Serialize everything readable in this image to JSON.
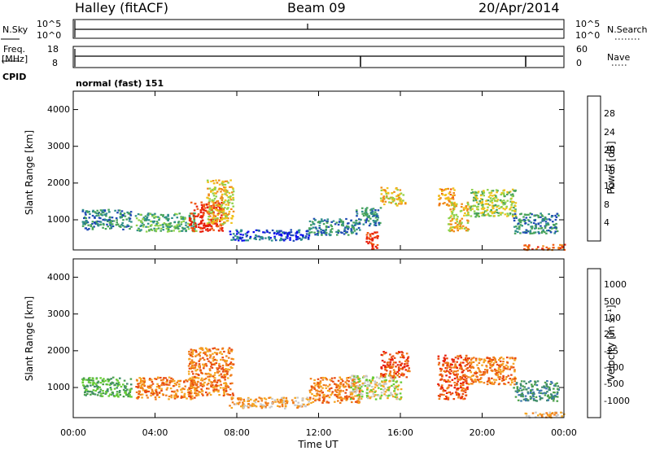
{
  "header": {
    "station": "Halley (fitACF)",
    "beam": "Beam 09",
    "date": "20/Apr/2014"
  },
  "sky_panel": {
    "left_label": "N.Sky",
    "right_label": "N.Search",
    "tick_top": "10^5",
    "tick_bottom": "10^0",
    "right_tick_top": "10^5",
    "right_tick_bottom": "10^0"
  },
  "freq_panel": {
    "left_label_top": "Freq.",
    "left_label_bottom": "[MHz]",
    "right_label": "Nave",
    "tick_top": "18",
    "tick_bottom": "8",
    "right_tick_top": "60",
    "right_tick_bottom": "0"
  },
  "cpid": {
    "label": "CPID",
    "mode": "normal (fast) 151"
  },
  "colors": {
    "power": [
      "#0a0aee",
      "#1e4ab4",
      "#2f8f8a",
      "#47a35a",
      "#8fd24a",
      "#f0c21a",
      "#f08a1a",
      "#f05a10",
      "#e81e0a"
    ],
    "velocity": [
      "#1a3cb4",
      "#3c78aa",
      "#3f8c6a",
      "#4aa04a",
      "#66cc33",
      "#c8c8c8",
      "#f5a623",
      "#f07d1a",
      "#e84a10",
      "#e81e0a"
    ]
  },
  "chart_data": [
    {
      "type": "heatmap",
      "name": "power",
      "ylabel": "Slant Range [km]",
      "xlabel": "",
      "x_ticks": [
        "00:00",
        "04:00",
        "08:00",
        "12:00",
        "16:00",
        "20:00",
        "00:00"
      ],
      "y_ticks": [
        "1000",
        "2000",
        "3000",
        "4000"
      ],
      "ylim": [
        180,
        4500
      ],
      "colorbar": {
        "label": "Power [dB]",
        "ticks": [
          "4",
          "8",
          "12",
          "16",
          "20",
          "24",
          "28"
        ]
      },
      "features": [
        {
          "t": [
            0.4,
            2.8
          ],
          "r": [
            750,
            1300
          ],
          "level": 2
        },
        {
          "t": [
            3.0,
            6.0
          ],
          "r": [
            700,
            1200
          ],
          "level": 3
        },
        {
          "t": [
            5.6,
            7.3
          ],
          "r": [
            700,
            1500
          ],
          "level": 8
        },
        {
          "t": [
            6.5,
            7.8
          ],
          "r": [
            900,
            2100
          ],
          "level": 5
        },
        {
          "t": [
            7.6,
            11.5
          ],
          "r": [
            450,
            750
          ],
          "level": 1
        },
        {
          "t": [
            11.5,
            14.0
          ],
          "r": [
            600,
            1050
          ],
          "level": 2
        },
        {
          "t": [
            13.8,
            15.0
          ],
          "r": [
            850,
            1350
          ],
          "level": 2
        },
        {
          "t": [
            14.3,
            14.9
          ],
          "r": [
            200,
            700
          ],
          "level": 8
        },
        {
          "t": [
            15.0,
            16.2
          ],
          "r": [
            1400,
            1900
          ],
          "level": 5
        },
        {
          "t": [
            17.8,
            18.6
          ],
          "r": [
            1400,
            1900
          ],
          "level": 6
        },
        {
          "t": [
            18.3,
            19.3
          ],
          "r": [
            700,
            1500
          ],
          "level": 5
        },
        {
          "t": [
            19.3,
            21.6
          ],
          "r": [
            1100,
            1850
          ],
          "level": 4
        },
        {
          "t": [
            21.5,
            23.7
          ],
          "r": [
            650,
            1200
          ],
          "level": 2
        },
        {
          "t": [
            22.0,
            24.0
          ],
          "r": [
            200,
            350
          ],
          "level": 7
        }
      ]
    },
    {
      "type": "heatmap",
      "name": "velocity",
      "ylabel": "Slant Range [km]",
      "xlabel": "Time UT",
      "x_ticks": [
        "00:00",
        "04:00",
        "08:00",
        "12:00",
        "16:00",
        "20:00",
        "00:00"
      ],
      "y_ticks": [
        "1000",
        "2000",
        "3000",
        "4000"
      ],
      "ylim": [
        180,
        4500
      ],
      "colorbar": {
        "label": "Velocity [m s⁻¹]",
        "ticks": [
          "1000",
          "500",
          "100",
          "25",
          "-25",
          "-100",
          "-500",
          "-1000"
        ]
      },
      "features": [
        {
          "t": [
            0.4,
            2.8
          ],
          "r": [
            750,
            1300
          ],
          "level": 3
        },
        {
          "t": [
            3.0,
            6.0
          ],
          "r": [
            700,
            1300
          ],
          "level": 7
        },
        {
          "t": [
            5.6,
            7.8
          ],
          "r": [
            800,
            2100
          ],
          "level": 7
        },
        {
          "t": [
            7.6,
            11.5
          ],
          "r": [
            450,
            750
          ],
          "level": 6
        },
        {
          "t": [
            11.5,
            14.0
          ],
          "r": [
            600,
            1300
          ],
          "level": 7
        },
        {
          "t": [
            13.5,
            16.0
          ],
          "r": [
            700,
            1350
          ],
          "level": 5
        },
        {
          "t": [
            15.0,
            16.4
          ],
          "r": [
            1300,
            2000
          ],
          "level": 8
        },
        {
          "t": [
            17.8,
            19.3
          ],
          "r": [
            700,
            1900
          ],
          "level": 8
        },
        {
          "t": [
            19.3,
            21.6
          ],
          "r": [
            1100,
            1850
          ],
          "level": 7
        },
        {
          "t": [
            21.5,
            23.7
          ],
          "r": [
            650,
            1200
          ],
          "level": 2
        },
        {
          "t": [
            22.0,
            24.0
          ],
          "r": [
            200,
            350
          ],
          "level": 6
        }
      ]
    }
  ]
}
